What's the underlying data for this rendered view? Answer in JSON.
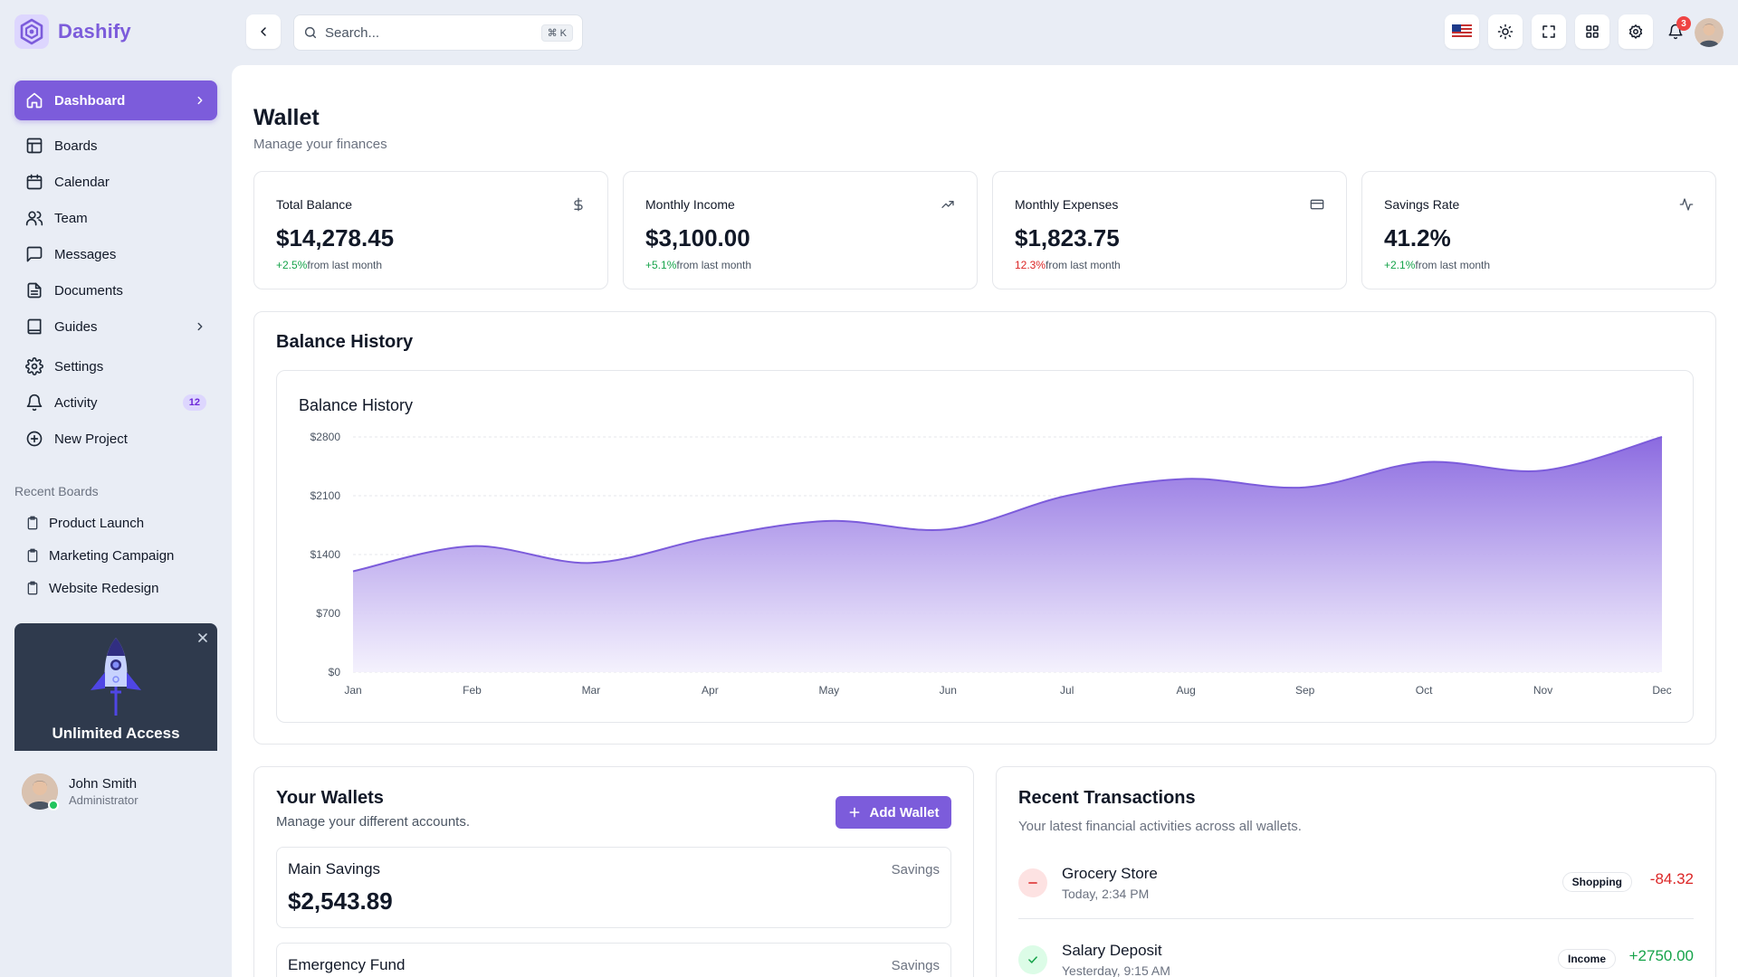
{
  "brand": {
    "name": "Dashify"
  },
  "sidebar": {
    "items": [
      {
        "label": "Dashboard",
        "icon": "home-icon"
      },
      {
        "label": "Boards",
        "icon": "board-icon"
      },
      {
        "label": "Calendar",
        "icon": "calendar-icon"
      },
      {
        "label": "Team",
        "icon": "team-icon"
      },
      {
        "label": "Messages",
        "icon": "message-icon"
      },
      {
        "label": "Documents",
        "icon": "document-icon"
      },
      {
        "label": "Guides",
        "icon": "book-icon"
      },
      {
        "label": "Settings",
        "icon": "gear-icon"
      },
      {
        "label": "Activity",
        "icon": "bell-icon",
        "badge": "12"
      },
      {
        "label": "New Project",
        "icon": "plus-circle-icon"
      }
    ],
    "recent_title": "Recent Boards",
    "recent": [
      "Product Launch",
      "Marketing Campaign",
      "Website Redesign"
    ],
    "promo": {
      "title": "Unlimited Access"
    },
    "user": {
      "name": "John Smith",
      "role": "Administrator"
    }
  },
  "header": {
    "search_placeholder": "Search...",
    "search_shortcut": "⌘ K",
    "notifications": "3"
  },
  "page": {
    "title": "Wallet",
    "subtitle": "Manage your finances"
  },
  "stats": [
    {
      "label": "Total Balance",
      "value": "$14,278.45",
      "change": "+2.5%",
      "note": "from last month",
      "icon": "dollar-icon",
      "trend": "positive"
    },
    {
      "label": "Monthly Income",
      "value": "$3,100.00",
      "change": "+5.1%",
      "note": "from last month",
      "icon": "trending-up-icon",
      "trend": "positive"
    },
    {
      "label": "Monthly Expenses",
      "value": "$1,823.75",
      "change": "12.3%",
      "note": "from last month",
      "icon": "credit-card-icon",
      "trend": "negative"
    },
    {
      "label": "Savings Rate",
      "value": "41.2%",
      "change": "+2.1%",
      "note": "from last month",
      "icon": "activity-icon",
      "trend": "positive"
    }
  ],
  "balance_history": {
    "card_title": "Balance History"
  },
  "chart_data": {
    "type": "area",
    "title": "Balance History",
    "xlabel": "",
    "ylabel": "",
    "categories": [
      "Jan",
      "Feb",
      "Mar",
      "Apr",
      "May",
      "Jun",
      "Jul",
      "Aug",
      "Sep",
      "Oct",
      "Nov",
      "Dec"
    ],
    "values": [
      1200,
      1500,
      1300,
      1600,
      1800,
      1700,
      2100,
      2300,
      2200,
      2500,
      2400,
      2800
    ],
    "yticks": [
      "$0",
      "$700",
      "$1400",
      "$2100",
      "$2800"
    ],
    "ylim": [
      0,
      2800
    ],
    "grid": true,
    "colors": {
      "line": "#7c5cdb",
      "fill_top": "#8b6ae0",
      "fill_bottom": "#f3f0fd"
    }
  },
  "wallets": {
    "title": "Your Wallets",
    "subtitle": "Manage your different accounts.",
    "add_label": "Add Wallet",
    "items": [
      {
        "name": "Main Savings",
        "type": "Savings",
        "balance": "$2,543.89"
      },
      {
        "name": "Emergency Fund",
        "type": "Savings"
      }
    ]
  },
  "transactions": {
    "title": "Recent Transactions",
    "subtitle": "Your latest financial activities across all wallets.",
    "items": [
      {
        "name": "Grocery Store",
        "time": "Today, 2:34 PM",
        "tag": "Shopping",
        "amount": "-84.32",
        "kind": "expense"
      },
      {
        "name": "Salary Deposit",
        "time": "Yesterday, 9:15 AM",
        "tag": "Income",
        "amount": "+2750.00",
        "kind": "income"
      }
    ]
  },
  "colors": {
    "accent": "#7c5cdb",
    "positive": "#16a34a",
    "negative": "#dc2626"
  }
}
